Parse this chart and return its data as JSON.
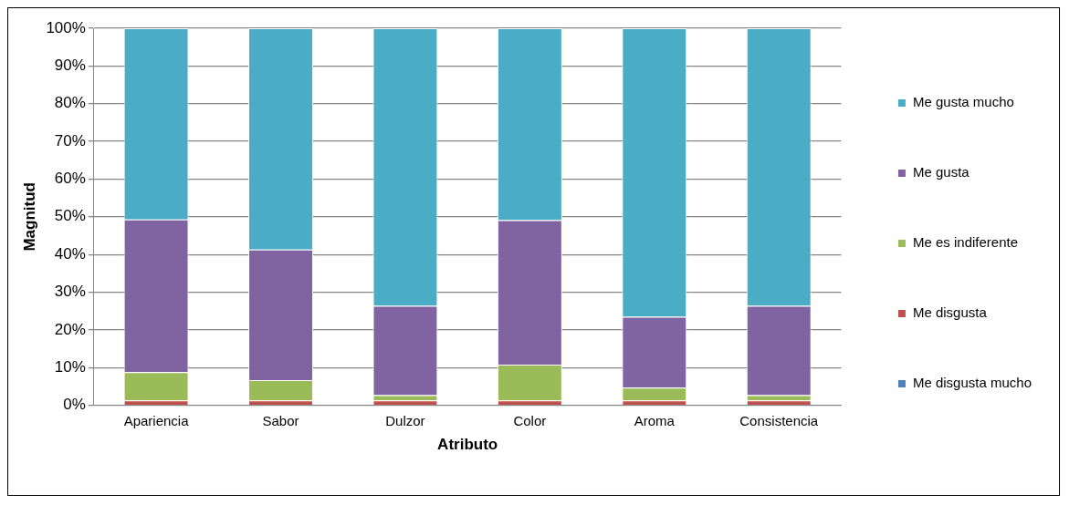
{
  "chart_data": {
    "type": "bar",
    "stacked": true,
    "xlabel": "Atributo",
    "ylabel": "Magnitud",
    "categories": [
      "Apariencia",
      "Sabor",
      "Dulzor",
      "Color",
      "Aroma",
      "Consistencia"
    ],
    "series": [
      {
        "name": "Me disgusta mucho",
        "color": "#4f81bd",
        "values": [
          0,
          0,
          0,
          0,
          0,
          0
        ]
      },
      {
        "name": "Me disgusta",
        "color": "#c0504d",
        "values": [
          1.3,
          1.3,
          1.3,
          1.3,
          1.3,
          1.3
        ]
      },
      {
        "name": "Me es indiferente",
        "color": "#9bbb59",
        "values": [
          7.5,
          5.4,
          1.4,
          9.5,
          3.4,
          1.4
        ]
      },
      {
        "name": "Me gusta",
        "color": "#8064a2",
        "values": [
          40.5,
          34.6,
          23.7,
          38.3,
          18.8,
          23.7
        ]
      },
      {
        "name": "Me gusta mucho",
        "color": "#4bacc6",
        "values": [
          50.7,
          58.7,
          73.6,
          50.9,
          76.5,
          73.6
        ]
      }
    ],
    "ylim": [
      0,
      100
    ],
    "yticks": [
      {
        "value": 0,
        "label": "0%"
      },
      {
        "value": 10,
        "label": "10%"
      },
      {
        "value": 20,
        "label": "20%"
      },
      {
        "value": 30,
        "label": "30%"
      },
      {
        "value": 40,
        "label": "40%"
      },
      {
        "value": 50,
        "label": "50%"
      },
      {
        "value": 60,
        "label": "60%"
      },
      {
        "value": 70,
        "label": "70%"
      },
      {
        "value": 80,
        "label": "80%"
      },
      {
        "value": 90,
        "label": "90%"
      },
      {
        "value": 100,
        "label": "100%"
      }
    ],
    "grid": "y",
    "legend": "right"
  }
}
